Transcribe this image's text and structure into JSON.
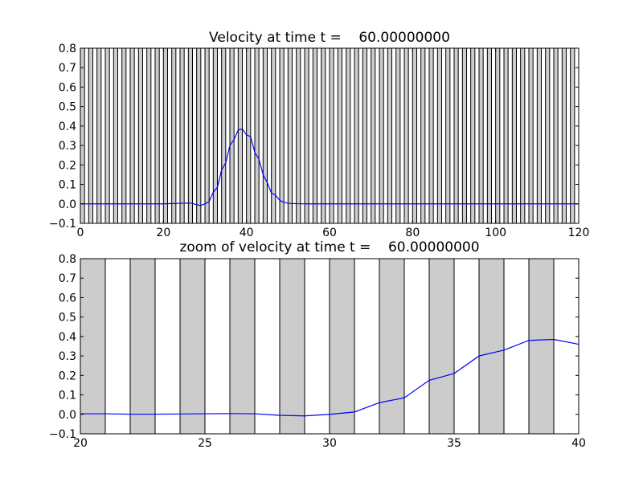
{
  "colors": {
    "background": "#ffffff",
    "band": "#cccccc",
    "line": "#0000ff",
    "axes": "#000000"
  },
  "chart_data": [
    {
      "type": "line",
      "title": "Velocity at time t =    60.00000000",
      "xlabel": "",
      "ylabel": "",
      "xlim": [
        0,
        120
      ],
      "ylim": [
        -0.1,
        0.8
      ],
      "xticks": [
        0,
        20,
        40,
        60,
        80,
        100,
        120
      ],
      "yticks": [
        -0.1,
        0.0,
        0.1,
        0.2,
        0.3,
        0.4,
        0.5,
        0.6,
        0.7,
        0.8
      ],
      "xtick_labels": [
        "0",
        "20",
        "40",
        "60",
        "80",
        "100",
        "120"
      ],
      "ytick_labels": [
        "−0.1",
        "0.0",
        "0.1",
        "0.2",
        "0.3",
        "0.4",
        "0.5",
        "0.6",
        "0.7",
        "0.8"
      ],
      "grid": false,
      "shaded_intervals": "unit-width cells alternately shaded gray, gray from x=0 to 1, 2 to 3, ... through 119 to 120",
      "series": [
        {
          "x": [
            0,
            10,
            20,
            24,
            26,
            27,
            28,
            29,
            30,
            31,
            32,
            33,
            34,
            35,
            36,
            37,
            38,
            39,
            40,
            41,
            42,
            43,
            44,
            45,
            46,
            47,
            48,
            49,
            50,
            52,
            55,
            60,
            80,
            100,
            120
          ],
          "y": [
            0,
            0,
            0,
            0.003,
            0.004,
            0.003,
            -0.005,
            -0.008,
            0.0,
            0.012,
            0.06,
            0.085,
            0.175,
            0.21,
            0.3,
            0.33,
            0.38,
            0.385,
            0.355,
            0.345,
            0.265,
            0.23,
            0.15,
            0.11,
            0.055,
            0.045,
            0.018,
            0.008,
            0.003,
            0.001,
            0,
            0,
            0,
            0,
            0
          ]
        }
      ]
    },
    {
      "type": "line",
      "title": "zoom of velocity at time t =    60.00000000",
      "xlabel": "",
      "ylabel": "",
      "xlim": [
        20,
        40
      ],
      "ylim": [
        -0.1,
        0.8
      ],
      "xticks": [
        20,
        25,
        30,
        35,
        40
      ],
      "yticks": [
        -0.1,
        0.0,
        0.1,
        0.2,
        0.3,
        0.4,
        0.5,
        0.6,
        0.7,
        0.8
      ],
      "xtick_labels": [
        "20",
        "25",
        "30",
        "35",
        "40"
      ],
      "ytick_labels": [
        "−0.1",
        "0.0",
        "0.1",
        "0.2",
        "0.3",
        "0.4",
        "0.5",
        "0.6",
        "0.7",
        "0.8"
      ],
      "grid": false,
      "shaded_intervals": "gray from x=20 to 21, 22 to 23, 24 to 25, 26 to 27, 28 to 29, 30 to 31, 32 to 33, 34 to 35, 36 to 37, 38 to 39",
      "series": [
        {
          "x": [
            20,
            21,
            22,
            23,
            24,
            25,
            26,
            27,
            28,
            29,
            30,
            31,
            32,
            33,
            34,
            35,
            36,
            37,
            38,
            39,
            40
          ],
          "y": [
            0.003,
            0.003,
            0.001,
            0.001,
            0.002,
            0.003,
            0.004,
            0.003,
            -0.005,
            -0.008,
            0.0,
            0.012,
            0.06,
            0.085,
            0.175,
            0.21,
            0.3,
            0.33,
            0.38,
            0.385,
            0.36
          ]
        }
      ]
    }
  ]
}
